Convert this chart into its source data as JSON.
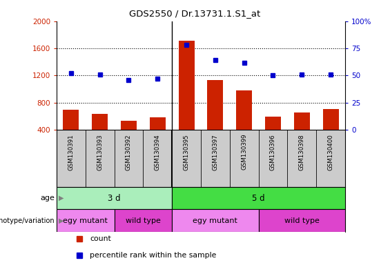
{
  "title": "GDS2550 / Dr.13731.1.S1_at",
  "samples": [
    "GSM130391",
    "GSM130393",
    "GSM130392",
    "GSM130394",
    "GSM130395",
    "GSM130397",
    "GSM130399",
    "GSM130396",
    "GSM130398",
    "GSM130400"
  ],
  "counts": [
    700,
    640,
    530,
    580,
    1710,
    1130,
    980,
    590,
    660,
    710
  ],
  "percentile": [
    52,
    51,
    46,
    47,
    78,
    64,
    62,
    50,
    51,
    51
  ],
  "ylim_left": [
    400,
    2000
  ],
  "ylim_right": [
    0,
    100
  ],
  "yticks_left": [
    400,
    800,
    1200,
    1600,
    2000
  ],
  "yticks_right": [
    0,
    25,
    50,
    75,
    100
  ],
  "bar_color": "#cc2200",
  "dot_color": "#0000cc",
  "left_tick_color": "#cc2200",
  "right_tick_color": "#0000cc",
  "age_groups": [
    {
      "label": "3 d",
      "start": 0,
      "end": 4,
      "color": "#aaeebb"
    },
    {
      "label": "5 d",
      "start": 4,
      "end": 10,
      "color": "#44dd44"
    }
  ],
  "genotype_groups": [
    {
      "label": "egy mutant",
      "start": 0,
      "end": 2,
      "color": "#ee88ee"
    },
    {
      "label": "wild type",
      "start": 2,
      "end": 4,
      "color": "#dd44cc"
    },
    {
      "label": "egy mutant",
      "start": 4,
      "end": 7,
      "color": "#ee88ee"
    },
    {
      "label": "wild type",
      "start": 7,
      "end": 10,
      "color": "#dd44cc"
    }
  ],
  "legend_items": [
    {
      "label": "count",
      "color": "#cc2200"
    },
    {
      "label": "percentile rank within the sample",
      "color": "#0000cc"
    }
  ],
  "xticklabel_area_color": "#cccccc",
  "group_divider": 4
}
